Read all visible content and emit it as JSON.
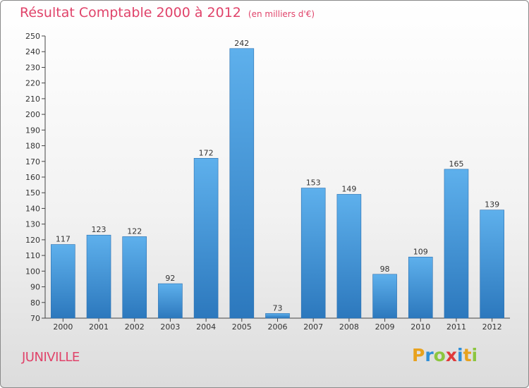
{
  "title": "Résultat Comptable 2000 à 2012",
  "subtitle": "(en milliers d'€)",
  "commune": "JUNIVILLE",
  "logo": {
    "letters": [
      "P",
      "r",
      "o",
      "x",
      "i",
      "t",
      "i"
    ],
    "colors": [
      "#e8a21e",
      "#2f8fd8",
      "#8cc63f",
      "#e03a3a",
      "#2f8fd8",
      "#e8a21e",
      "#8cc63f"
    ]
  },
  "chart_data": {
    "type": "bar",
    "categories": [
      "2000",
      "2001",
      "2002",
      "2003",
      "2004",
      "2005",
      "2006",
      "2007",
      "2008",
      "2009",
      "2010",
      "2011",
      "2012"
    ],
    "values": [
      117,
      123,
      122,
      92,
      172,
      242,
      73,
      153,
      149,
      98,
      109,
      165,
      139
    ],
    "ylim": [
      70,
      250
    ],
    "ytick_step": 10,
    "grid": false,
    "bar_color": "#4a9fe0",
    "bar_color_dark": "#2f7ec4"
  }
}
